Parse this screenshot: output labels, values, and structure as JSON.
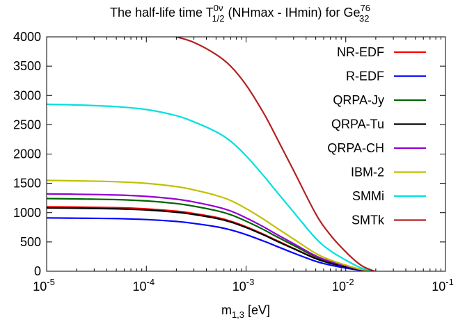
{
  "chart_data": {
    "type": "line",
    "title_main": "The half-life time T",
    "title_sup": "0ν",
    "title_sub": "1/2",
    "title_mid": " (NHmax - IHmin) for Ge",
    "title_iso_sup": "76",
    "title_iso_sub": "32",
    "xlabel_main": "m",
    "xlabel_sub": "1,3",
    "xlabel_unit": " [eV]",
    "ylabel": "",
    "xscale": "log",
    "xlim": [
      1e-05,
      0.1
    ],
    "ylim": [
      0,
      4000
    ],
    "x_ticks": [
      {
        "value": 1e-05,
        "base": "10",
        "exp": "-5"
      },
      {
        "value": 0.0001,
        "base": "10",
        "exp": "-4"
      },
      {
        "value": 0.001,
        "base": "10",
        "exp": "-3"
      },
      {
        "value": 0.01,
        "base": "10",
        "exp": "-2"
      },
      {
        "value": 0.1,
        "base": "10",
        "exp": "-1"
      }
    ],
    "y_ticks": [
      {
        "value": 0,
        "label": "0"
      },
      {
        "value": 500,
        "label": "500"
      },
      {
        "value": 1000,
        "label": "1000"
      },
      {
        "value": 1500,
        "label": "1500"
      },
      {
        "value": 2000,
        "label": "2000"
      },
      {
        "value": 2500,
        "label": "2500"
      },
      {
        "value": 3000,
        "label": "3000"
      },
      {
        "value": 3500,
        "label": "3500"
      },
      {
        "value": 4000,
        "label": "4000"
      }
    ],
    "grid": false,
    "legend_position": "top-right",
    "x": [
      1e-05,
      2e-05,
      5e-05,
      0.0001,
      0.0002,
      0.0003,
      0.0005,
      0.0007,
      0.001,
      0.0015,
      0.002,
      0.003,
      0.005,
      0.007,
      0.01,
      0.014,
      0.018,
      0.0195
    ],
    "series": [
      {
        "name": "NR-EDF",
        "color": "#ff0000",
        "values": [
          1100,
          1095,
          1085,
          1065,
          1025,
          985,
          920,
          855,
          760,
          630,
          530,
          390,
          220,
          140,
          75,
          25,
          5,
          0
        ]
      },
      {
        "name": "R-EDF",
        "color": "#0000ff",
        "values": [
          910,
          906,
          898,
          882,
          850,
          816,
          760,
          705,
          625,
          515,
          430,
          310,
          170,
          105,
          55,
          18,
          4,
          0
        ]
      },
      {
        "name": "QRPA-Jy",
        "color": "#006400",
        "values": [
          1240,
          1234,
          1222,
          1200,
          1155,
          1110,
          1035,
          965,
          855,
          710,
          595,
          440,
          245,
          155,
          85,
          28,
          6,
          0
        ]
      },
      {
        "name": "QRPA-Tu",
        "color": "#000000",
        "values": [
          1080,
          1075,
          1065,
          1046,
          1007,
          968,
          903,
          840,
          746,
          620,
          520,
          385,
          215,
          135,
          75,
          25,
          5,
          0
        ]
      },
      {
        "name": "QRPA-CH",
        "color": "#9400d3",
        "values": [
          1320,
          1314,
          1301,
          1277,
          1230,
          1182,
          1102,
          1028,
          912,
          757,
          635,
          470,
          262,
          165,
          90,
          30,
          6,
          0
        ]
      },
      {
        "name": "IBM-2",
        "color": "#c0c000",
        "values": [
          1550,
          1543,
          1528,
          1500,
          1445,
          1388,
          1294,
          1207,
          1070,
          888,
          745,
          550,
          305,
          192,
          105,
          35,
          7,
          0
        ]
      },
      {
        "name": "SMMi",
        "color": "#00e0e0",
        "values": [
          2850,
          2838,
          2810,
          2760,
          2655,
          2550,
          2380,
          2220,
          1970,
          1630,
          1370,
          1010,
          560,
          350,
          190,
          62,
          12,
          0
        ]
      },
      {
        "name": "SMTk",
        "color": "#b22222",
        "values": [
          null,
          null,
          null,
          null,
          4000,
          3905,
          3700,
          3500,
          3180,
          2700,
          2300,
          1720,
          980,
          620,
          330,
          110,
          20,
          0
        ]
      }
    ]
  }
}
